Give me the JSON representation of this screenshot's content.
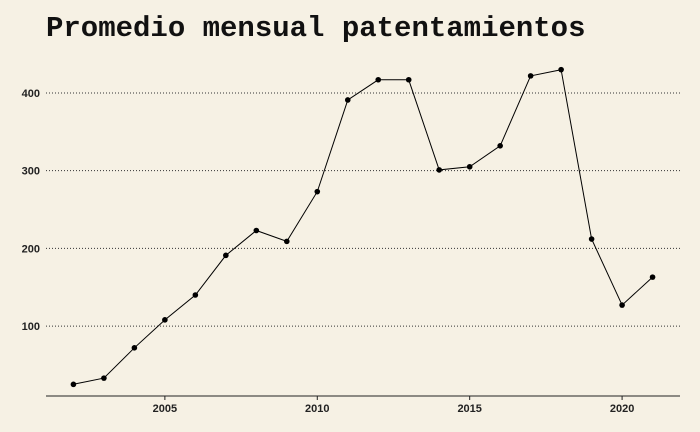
{
  "chart_data": {
    "type": "line",
    "title": "Promedio mensual patentamientos",
    "xlabel": "",
    "ylabel": "",
    "x": [
      2002,
      2003,
      2004,
      2005,
      2006,
      2007,
      2008,
      2009,
      2010,
      2011,
      2012,
      2013,
      2014,
      2015,
      2016,
      2017,
      2018,
      2019,
      2020,
      2021
    ],
    "series": [
      {
        "values": [
          25,
          33,
          72,
          108,
          140,
          191,
          223,
          209,
          273,
          391,
          417,
          417,
          301,
          305,
          332,
          422,
          430,
          212,
          127,
          163
        ]
      }
    ],
    "xticks": [
      "2005",
      "2010",
      "2015",
      "2020"
    ],
    "yticks": [
      "100",
      "200",
      "300",
      "400"
    ],
    "xlim": [
      2001.1,
      2021.9
    ],
    "ylim": [
      10,
      445
    ],
    "grid": "horizontal-dotted",
    "colors": {
      "background": "#f6f1e4",
      "line": "#000000",
      "grid": "#333333"
    }
  }
}
